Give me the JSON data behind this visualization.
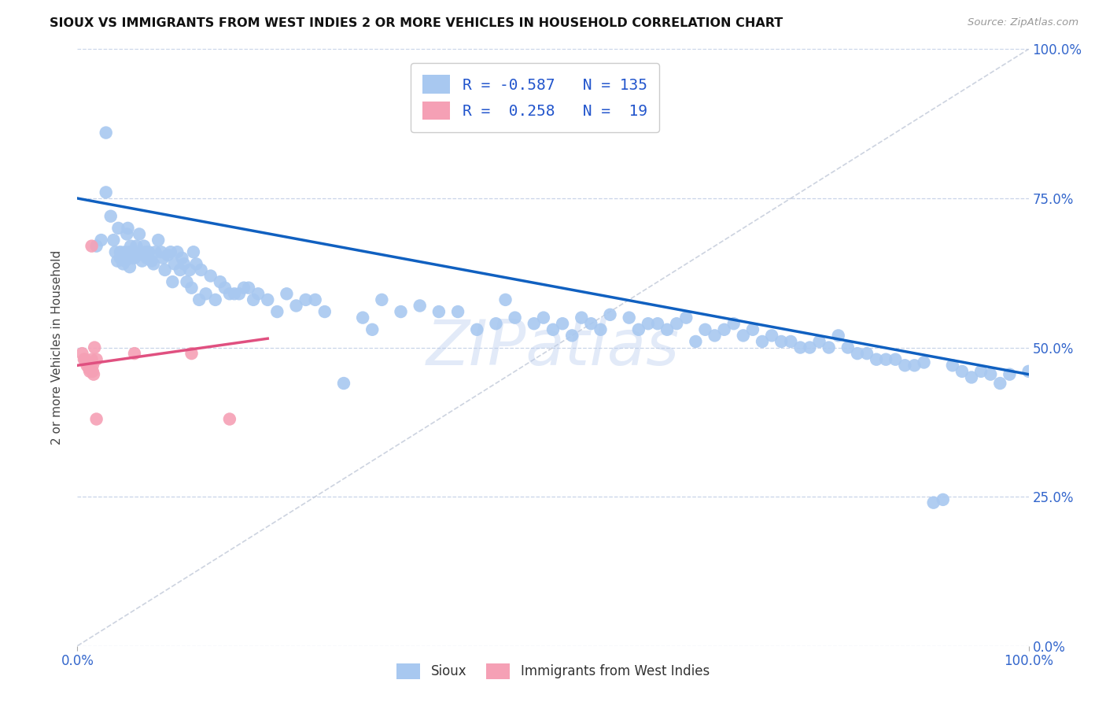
{
  "title": "SIOUX VS IMMIGRANTS FROM WEST INDIES 2 OR MORE VEHICLES IN HOUSEHOLD CORRELATION CHART",
  "source": "Source: ZipAtlas.com",
  "ylabel": "2 or more Vehicles in Household",
  "ytick_labels": [
    "0.0%",
    "25.0%",
    "50.0%",
    "75.0%",
    "100.0%"
  ],
  "ytick_values": [
    0.0,
    0.25,
    0.5,
    0.75,
    1.0
  ],
  "xlim": [
    0.0,
    1.0
  ],
  "ylim": [
    0.0,
    1.0
  ],
  "blue_color": "#a8c8f0",
  "pink_color": "#f5a0b5",
  "line_blue": "#1060c0",
  "line_pink": "#e05080",
  "dashed_line_color": "#c0c8d8",
  "background_color": "#ffffff",
  "grid_color": "#c8d4e8",
  "watermark": "ZIPatlas",
  "blue_line_y_start": 0.75,
  "blue_line_y_end": 0.455,
  "pink_line_x_start": 0.0,
  "pink_line_x_end": 0.2,
  "pink_line_y_start": 0.47,
  "pink_line_y_end": 0.515,
  "legend_text_color": "#2255cc",
  "axis_tick_color": "#3366cc",
  "ylabel_color": "#444444",
  "title_color": "#111111",
  "source_color": "#999999",
  "sioux_x": [
    0.02,
    0.025,
    0.03,
    0.03,
    0.035,
    0.038,
    0.04,
    0.042,
    0.043,
    0.045,
    0.045,
    0.048,
    0.05,
    0.05,
    0.052,
    0.053,
    0.055,
    0.055,
    0.056,
    0.058,
    0.06,
    0.06,
    0.062,
    0.063,
    0.065,
    0.068,
    0.07,
    0.07,
    0.072,
    0.073,
    0.075,
    0.078,
    0.08,
    0.082,
    0.085,
    0.088,
    0.09,
    0.092,
    0.095,
    0.098,
    0.1,
    0.102,
    0.105,
    0.108,
    0.11,
    0.112,
    0.115,
    0.118,
    0.12,
    0.122,
    0.125,
    0.128,
    0.13,
    0.135,
    0.14,
    0.145,
    0.15,
    0.155,
    0.16,
    0.165,
    0.17,
    0.175,
    0.18,
    0.185,
    0.19,
    0.2,
    0.21,
    0.22,
    0.23,
    0.24,
    0.25,
    0.26,
    0.28,
    0.3,
    0.31,
    0.32,
    0.34,
    0.36,
    0.38,
    0.4,
    0.42,
    0.44,
    0.45,
    0.46,
    0.48,
    0.49,
    0.5,
    0.51,
    0.52,
    0.53,
    0.54,
    0.55,
    0.56,
    0.58,
    0.59,
    0.6,
    0.61,
    0.62,
    0.63,
    0.64,
    0.65,
    0.66,
    0.67,
    0.68,
    0.69,
    0.7,
    0.71,
    0.72,
    0.73,
    0.74,
    0.75,
    0.76,
    0.77,
    0.78,
    0.79,
    0.8,
    0.81,
    0.82,
    0.83,
    0.84,
    0.85,
    0.86,
    0.87,
    0.88,
    0.89,
    0.9,
    0.91,
    0.92,
    0.93,
    0.94,
    0.95,
    0.96,
    0.97,
    0.98,
    1.0
  ],
  "sioux_y": [
    0.67,
    0.68,
    0.86,
    0.76,
    0.72,
    0.68,
    0.66,
    0.645,
    0.7,
    0.66,
    0.65,
    0.64,
    0.66,
    0.645,
    0.69,
    0.7,
    0.66,
    0.635,
    0.67,
    0.65,
    0.66,
    0.65,
    0.67,
    0.655,
    0.69,
    0.645,
    0.655,
    0.67,
    0.66,
    0.65,
    0.66,
    0.645,
    0.64,
    0.66,
    0.68,
    0.66,
    0.65,
    0.63,
    0.655,
    0.66,
    0.61,
    0.64,
    0.66,
    0.63,
    0.65,
    0.64,
    0.61,
    0.63,
    0.6,
    0.66,
    0.64,
    0.58,
    0.63,
    0.59,
    0.62,
    0.58,
    0.61,
    0.6,
    0.59,
    0.59,
    0.59,
    0.6,
    0.6,
    0.58,
    0.59,
    0.58,
    0.56,
    0.59,
    0.57,
    0.58,
    0.58,
    0.56,
    0.44,
    0.55,
    0.53,
    0.58,
    0.56,
    0.57,
    0.56,
    0.56,
    0.53,
    0.54,
    0.58,
    0.55,
    0.54,
    0.55,
    0.53,
    0.54,
    0.52,
    0.55,
    0.54,
    0.53,
    0.555,
    0.55,
    0.53,
    0.54,
    0.54,
    0.53,
    0.54,
    0.55,
    0.51,
    0.53,
    0.52,
    0.53,
    0.54,
    0.52,
    0.53,
    0.51,
    0.52,
    0.51,
    0.51,
    0.5,
    0.5,
    0.51,
    0.5,
    0.52,
    0.5,
    0.49,
    0.49,
    0.48,
    0.48,
    0.48,
    0.47,
    0.47,
    0.475,
    0.24,
    0.245,
    0.47,
    0.46,
    0.45,
    0.46,
    0.455,
    0.44,
    0.455,
    0.46
  ],
  "west_x": [
    0.005,
    0.007,
    0.008,
    0.01,
    0.01,
    0.012,
    0.013,
    0.013,
    0.015,
    0.015,
    0.016,
    0.016,
    0.017,
    0.018,
    0.02,
    0.02,
    0.06,
    0.12,
    0.16
  ],
  "west_y": [
    0.49,
    0.48,
    0.48,
    0.47,
    0.475,
    0.465,
    0.47,
    0.46,
    0.67,
    0.48,
    0.47,
    0.46,
    0.455,
    0.5,
    0.48,
    0.38,
    0.49,
    0.49,
    0.38
  ]
}
